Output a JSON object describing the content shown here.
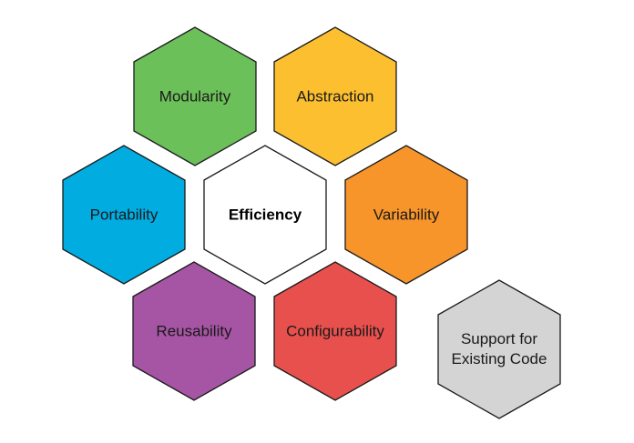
{
  "diagram": {
    "center": {
      "label": "Efficiency",
      "fill": "#ffffff",
      "text_color": "#000000"
    },
    "hexagons": [
      {
        "id": "modularity",
        "label": "Modularity",
        "fill": "#6cc05a",
        "text_color": "#1a1a1a"
      },
      {
        "id": "abstraction",
        "label": "Abstraction",
        "fill": "#fcbf30",
        "text_color": "#1a1a1a"
      },
      {
        "id": "portability",
        "label": "Portability",
        "fill": "#00ace0",
        "text_color": "#1a1a1a"
      },
      {
        "id": "variability",
        "label": "Variability",
        "fill": "#f7942a",
        "text_color": "#1a1a1a"
      },
      {
        "id": "reusability",
        "label": "Reusability",
        "fill": "#a655a4",
        "text_color": "#1a1a1a"
      },
      {
        "id": "configurability",
        "label": "Configurability",
        "fill": "#e8504e",
        "text_color": "#1a1a1a"
      },
      {
        "id": "support",
        "label": "Support for\nExisting Code",
        "fill": "#d4d4d4",
        "text_color": "#1a1a1a"
      }
    ]
  }
}
